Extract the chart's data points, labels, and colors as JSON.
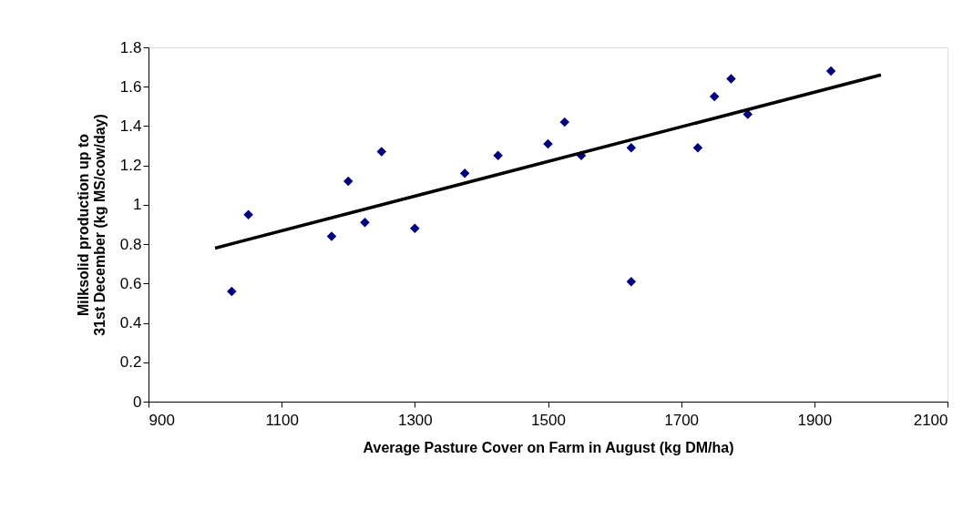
{
  "chart_data": {
    "type": "scatter",
    "xlabel": "Average Pasture Cover on Farm in August (kg DM/ha)",
    "ylabel": "Milksolid production up to 31st December (kg MS/cow/day)",
    "xlim": [
      900,
      2100
    ],
    "xticks": [
      900,
      1100,
      1300,
      1500,
      1700,
      1900,
      2100
    ],
    "ylim": [
      0,
      1.8
    ],
    "yticks": [
      0,
      0.2,
      0.4,
      0.6,
      0.8,
      1,
      1.2,
      1.4,
      1.6,
      1.8
    ],
    "grid": false,
    "series": [
      {
        "color": "#000080",
        "marker": "diamond",
        "x": [
          1025,
          1050,
          1175,
          1200,
          1225,
          1250,
          1300,
          1375,
          1425,
          1500,
          1525,
          1550,
          1625,
          1625,
          1725,
          1750,
          1775,
          1800,
          1925
        ],
        "values": [
          0.56,
          0.95,
          0.84,
          1.12,
          0.91,
          1.27,
          0.88,
          1.16,
          1.25,
          1.31,
          1.42,
          1.25,
          1.29,
          0.61,
          1.29,
          1.55,
          1.64,
          1.46,
          1.68
        ]
      },
      {
        "type": "line",
        "color": "#000000",
        "x": [
          1000,
          2000
        ],
        "values": [
          0.78,
          1.66
        ],
        "line_style": "solid",
        "marker": "none"
      }
    ]
  }
}
